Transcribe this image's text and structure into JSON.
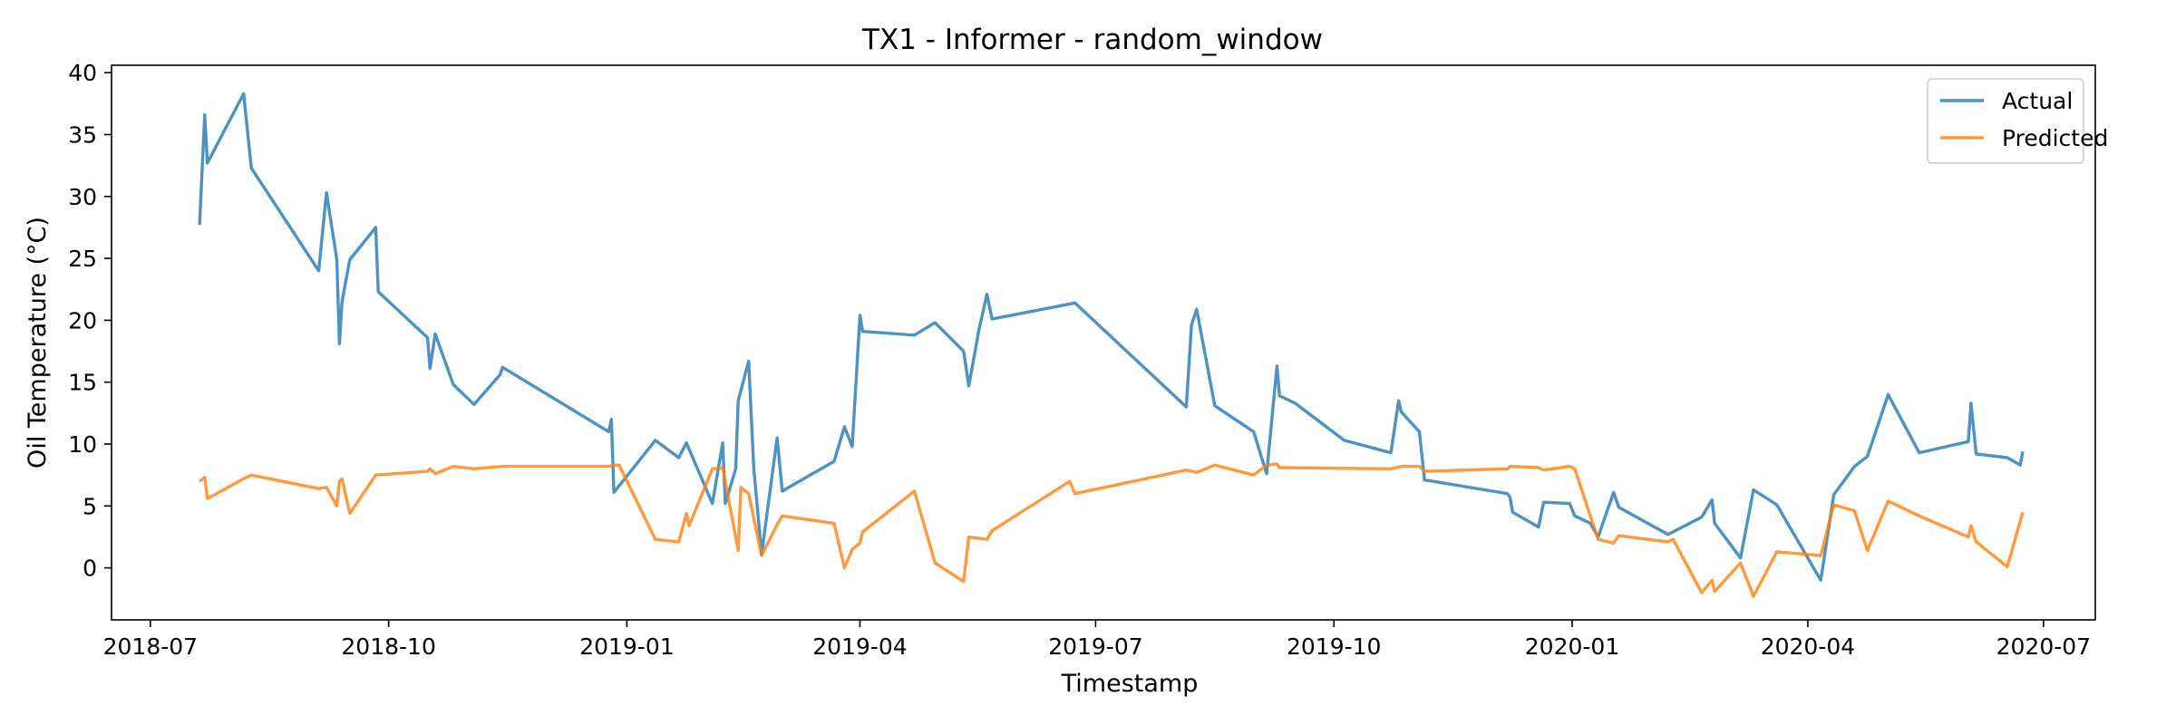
{
  "chart_data": {
    "type": "line",
    "title": "TX1 - Informer - random_window",
    "xlabel": "Timestamp",
    "ylabel": "Oil Temperature (°C)",
    "x_axis_type": "date",
    "xlim": [
      "2018-06-16",
      "2020-07-21"
    ],
    "ylim": [
      -4.2,
      40.6
    ],
    "x_ticks": [
      "2018-07-01",
      "2018-10-01",
      "2019-01-01",
      "2019-04-01",
      "2019-07-01",
      "2019-10-01",
      "2020-01-01",
      "2020-04-01",
      "2020-07-01"
    ],
    "x_tick_labels": [
      "2018-07",
      "2018-10",
      "2019-01",
      "2019-04",
      "2019-07",
      "2019-10",
      "2020-01",
      "2020-04",
      "2020-07"
    ],
    "y_ticks": [
      0,
      5,
      10,
      15,
      20,
      25,
      30,
      35,
      40
    ],
    "y_tick_labels": [
      "0",
      "5",
      "10",
      "15",
      "20",
      "25",
      "30",
      "35",
      "40"
    ],
    "grid": false,
    "legend_position": "top-right",
    "colors": {
      "actual": "#1f77b4",
      "predicted": "#ff7f0e"
    },
    "series": [
      {
        "name": "Actual",
        "points": [
          [
            "2018-07-20",
            27.7
          ],
          [
            "2018-07-22",
            36.6
          ],
          [
            "2018-07-23",
            32.7
          ],
          [
            "2018-08-06",
            38.3
          ],
          [
            "2018-08-09",
            32.3
          ],
          [
            "2018-09-04",
            24.0
          ],
          [
            "2018-09-07",
            30.3
          ],
          [
            "2018-09-11",
            24.9
          ],
          [
            "2018-09-12",
            18.1
          ],
          [
            "2018-09-13",
            21.5
          ],
          [
            "2018-09-16",
            24.9
          ],
          [
            "2018-09-26",
            27.5
          ],
          [
            "2018-09-27",
            22.3
          ],
          [
            "2018-10-16",
            18.6
          ],
          [
            "2018-10-17",
            16.1
          ],
          [
            "2018-10-19",
            18.9
          ],
          [
            "2018-10-26",
            14.8
          ],
          [
            "2018-11-03",
            13.2
          ],
          [
            "2018-11-13",
            15.6
          ],
          [
            "2018-11-14",
            16.2
          ],
          [
            "2018-12-25",
            11.0
          ],
          [
            "2018-12-26",
            12.0
          ],
          [
            "2018-12-27",
            6.1
          ],
          [
            "2019-01-12",
            10.3
          ],
          [
            "2019-01-21",
            8.9
          ],
          [
            "2019-01-24",
            10.1
          ],
          [
            "2019-02-03",
            5.2
          ],
          [
            "2019-02-07",
            10.1
          ],
          [
            "2019-02-08",
            5.2
          ],
          [
            "2019-02-12",
            8.0
          ],
          [
            "2019-02-13",
            13.5
          ],
          [
            "2019-02-17",
            16.7
          ],
          [
            "2019-02-19",
            8.0
          ],
          [
            "2019-02-22",
            1.1
          ],
          [
            "2019-02-28",
            10.5
          ],
          [
            "2019-03-02",
            6.2
          ],
          [
            "2019-03-22",
            8.6
          ],
          [
            "2019-03-26",
            11.4
          ],
          [
            "2019-03-29",
            9.8
          ],
          [
            "2019-04-01",
            20.4
          ],
          [
            "2019-04-02",
            19.1
          ],
          [
            "2019-04-22",
            18.8
          ],
          [
            "2019-04-30",
            19.8
          ],
          [
            "2019-05-11",
            17.5
          ],
          [
            "2019-05-13",
            14.7
          ],
          [
            "2019-05-17",
            19.3
          ],
          [
            "2019-05-20",
            22.1
          ],
          [
            "2019-05-22",
            20.1
          ],
          [
            "2019-06-23",
            21.4
          ],
          [
            "2019-08-05",
            13.0
          ],
          [
            "2019-08-07",
            19.6
          ],
          [
            "2019-08-09",
            20.9
          ],
          [
            "2019-08-16",
            13.1
          ],
          [
            "2019-08-31",
            11.0
          ],
          [
            "2019-09-05",
            7.6
          ],
          [
            "2019-09-09",
            16.3
          ],
          [
            "2019-09-10",
            13.9
          ],
          [
            "2019-09-16",
            13.3
          ],
          [
            "2019-10-05",
            10.3
          ],
          [
            "2019-10-23",
            9.3
          ],
          [
            "2019-10-26",
            13.5
          ],
          [
            "2019-10-27",
            12.6
          ],
          [
            "2019-11-03",
            11.0
          ],
          [
            "2019-11-05",
            7.1
          ],
          [
            "2019-12-07",
            6.0
          ],
          [
            "2019-12-08",
            5.7
          ],
          [
            "2019-12-09",
            4.5
          ],
          [
            "2019-12-19",
            3.3
          ],
          [
            "2019-12-21",
            5.3
          ],
          [
            "2019-12-31",
            5.2
          ],
          [
            "2020-01-02",
            4.2
          ],
          [
            "2020-01-08",
            3.6
          ],
          [
            "2020-01-11",
            2.5
          ],
          [
            "2020-01-17",
            6.1
          ],
          [
            "2020-01-19",
            4.9
          ],
          [
            "2020-02-07",
            2.7
          ],
          [
            "2020-02-20",
            4.1
          ],
          [
            "2020-02-24",
            5.5
          ],
          [
            "2020-02-25",
            3.6
          ],
          [
            "2020-03-06",
            0.8
          ],
          [
            "2020-03-11",
            6.3
          ],
          [
            "2020-03-20",
            5.1
          ],
          [
            "2020-04-06",
            -1.0
          ],
          [
            "2020-04-11",
            5.9
          ],
          [
            "2020-04-19",
            8.2
          ],
          [
            "2020-04-24",
            9.0
          ],
          [
            "2020-05-02",
            14.0
          ],
          [
            "2020-05-14",
            9.3
          ],
          [
            "2020-06-02",
            10.2
          ],
          [
            "2020-06-03",
            13.3
          ],
          [
            "2020-06-05",
            9.2
          ],
          [
            "2020-06-17",
            8.9
          ],
          [
            "2020-06-22",
            8.3
          ],
          [
            "2020-06-23",
            9.4
          ]
        ]
      },
      {
        "name": "Predicted",
        "points": [
          [
            "2018-07-20",
            7.0
          ],
          [
            "2018-07-22",
            7.3
          ],
          [
            "2018-07-23",
            5.6
          ],
          [
            "2018-08-06",
            7.2
          ],
          [
            "2018-08-09",
            7.5
          ],
          [
            "2018-09-04",
            6.4
          ],
          [
            "2018-09-07",
            6.5
          ],
          [
            "2018-09-11",
            5.0
          ],
          [
            "2018-09-12",
            7.0
          ],
          [
            "2018-09-13",
            7.2
          ],
          [
            "2018-09-16",
            4.4
          ],
          [
            "2018-09-26",
            7.5
          ],
          [
            "2018-10-16",
            7.8
          ],
          [
            "2018-10-17",
            8.0
          ],
          [
            "2018-10-19",
            7.6
          ],
          [
            "2018-10-26",
            8.2
          ],
          [
            "2018-11-03",
            8.0
          ],
          [
            "2018-11-14",
            8.2
          ],
          [
            "2018-12-25",
            8.2
          ],
          [
            "2018-12-27",
            8.3
          ],
          [
            "2018-12-29",
            8.3
          ],
          [
            "2019-01-12",
            2.3
          ],
          [
            "2019-01-21",
            2.1
          ],
          [
            "2019-01-24",
            4.4
          ],
          [
            "2019-01-25",
            3.4
          ],
          [
            "2019-02-03",
            8.0
          ],
          [
            "2019-02-07",
            8.1
          ],
          [
            "2019-02-13",
            1.4
          ],
          [
            "2019-02-14",
            6.5
          ],
          [
            "2019-02-17",
            6.0
          ],
          [
            "2019-02-22",
            1.0
          ],
          [
            "2019-02-28",
            3.5
          ],
          [
            "2019-03-02",
            4.2
          ],
          [
            "2019-03-22",
            3.6
          ],
          [
            "2019-03-26",
            0.0
          ],
          [
            "2019-03-29",
            1.5
          ],
          [
            "2019-04-01",
            2.0
          ],
          [
            "2019-04-02",
            2.9
          ],
          [
            "2019-04-22",
            6.2
          ],
          [
            "2019-04-30",
            0.4
          ],
          [
            "2019-05-11",
            -1.1
          ],
          [
            "2019-05-13",
            2.5
          ],
          [
            "2019-05-20",
            2.3
          ],
          [
            "2019-05-22",
            3.0
          ],
          [
            "2019-06-21",
            7.0
          ],
          [
            "2019-06-23",
            6.0
          ],
          [
            "2019-08-05",
            7.9
          ],
          [
            "2019-08-09",
            7.7
          ],
          [
            "2019-08-16",
            8.3
          ],
          [
            "2019-08-31",
            7.5
          ],
          [
            "2019-09-05",
            8.3
          ],
          [
            "2019-09-09",
            8.4
          ],
          [
            "2019-09-10",
            8.1
          ],
          [
            "2019-10-23",
            8.0
          ],
          [
            "2019-10-27",
            8.2
          ],
          [
            "2019-11-03",
            8.2
          ],
          [
            "2019-11-05",
            7.8
          ],
          [
            "2019-12-07",
            8.0
          ],
          [
            "2019-12-08",
            8.2
          ],
          [
            "2019-12-19",
            8.1
          ],
          [
            "2019-12-21",
            7.9
          ],
          [
            "2019-12-31",
            8.2
          ],
          [
            "2020-01-02",
            8.0
          ],
          [
            "2020-01-11",
            2.3
          ],
          [
            "2020-01-17",
            2.0
          ],
          [
            "2020-01-19",
            2.6
          ],
          [
            "2020-02-07",
            2.1
          ],
          [
            "2020-02-09",
            2.3
          ],
          [
            "2020-02-20",
            -2.0
          ],
          [
            "2020-02-24",
            -1.0
          ],
          [
            "2020-02-25",
            -1.9
          ],
          [
            "2020-03-06",
            0.4
          ],
          [
            "2020-03-11",
            -2.3
          ],
          [
            "2020-03-20",
            1.3
          ],
          [
            "2020-04-06",
            1.0
          ],
          [
            "2020-04-11",
            5.1
          ],
          [
            "2020-04-19",
            4.6
          ],
          [
            "2020-04-24",
            1.4
          ],
          [
            "2020-05-02",
            5.4
          ],
          [
            "2020-05-14",
            4.2
          ],
          [
            "2020-06-02",
            2.5
          ],
          [
            "2020-06-03",
            3.4
          ],
          [
            "2020-06-05",
            2.1
          ],
          [
            "2020-06-17",
            0.1
          ],
          [
            "2020-06-23",
            4.5
          ]
        ]
      }
    ]
  }
}
